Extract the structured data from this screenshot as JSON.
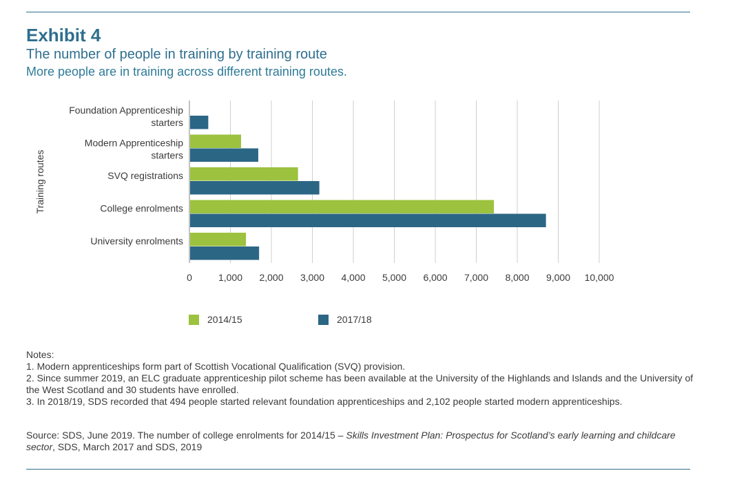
{
  "header": {
    "exhibit": "Exhibit 4",
    "title": "The number of people in training by training route",
    "subtitle": "More people are in training across different training routes."
  },
  "chart_data": {
    "type": "bar",
    "orientation": "horizontal",
    "categories": [
      [
        "Foundation Apprenticeship",
        "starters"
      ],
      [
        "Modern Apprenticeship",
        "starters"
      ],
      [
        "SVQ registrations"
      ],
      [
        "College enrolments"
      ],
      [
        "University enrolments"
      ]
    ],
    "series": [
      {
        "name": "2014/15",
        "color": "#9cc23f",
        "values": [
          null,
          1260,
          2650,
          7430,
          1380
        ]
      },
      {
        "name": "2017/18",
        "color": "#2c6685",
        "values": [
          460,
          1680,
          3170,
          8700,
          1700
        ]
      }
    ],
    "ylabel": "Training routes",
    "xlim": [
      0,
      10000
    ],
    "xticks": [
      0,
      1000,
      2000,
      3000,
      4000,
      5000,
      6000,
      7000,
      8000,
      9000,
      10000
    ],
    "xtick_labels": [
      "0",
      "1,000",
      "2,000",
      "3,000",
      "4,000",
      "5,000",
      "6,000",
      "7,000",
      "8,000",
      "9,000",
      "10,000"
    ],
    "grid": true,
    "legend_position": "bottom"
  },
  "notes": {
    "heading": "Notes:",
    "items": [
      "1. Modern apprenticeships form part of Scottish Vocational Qualification (SVQ) provision.",
      "2. Since summer 2019, an ELC graduate apprenticeship pilot scheme has been available at the University of the Highlands and Islands and the University of the West Scotland and 30 students have enrolled.",
      "3. In 2018/19, SDS recorded that 494 people started relevant foundation apprenticeships and 2,102 people started modern apprenticeships."
    ]
  },
  "source": {
    "prefix": "Source: SDS, June 2019. The number of college enrolments for 2014/15 – ",
    "italic": "Skills Investment Plan: Prospectus for Scotland’s early learning and childcare sector",
    "suffix": ", SDS, March 2017 and SDS, 2019"
  }
}
